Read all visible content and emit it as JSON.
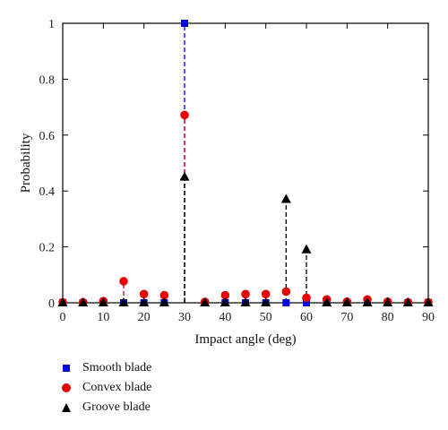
{
  "chart_data": {
    "type": "scatter",
    "xlabel": "Impact angle (deg)",
    "ylabel": "Probability",
    "xlim": [
      0,
      90
    ],
    "ylim": [
      0,
      1
    ],
    "xticks": [
      0,
      10,
      20,
      30,
      40,
      50,
      60,
      70,
      80,
      90
    ],
    "yticks": [
      0,
      0.2,
      0.4,
      0.6,
      0.8,
      1
    ],
    "ytick_labels": [
      "0",
      "0.2",
      "0.4",
      "0.6",
      "0.8",
      "1"
    ],
    "grid": false,
    "legend_position": "bottom-left",
    "series": [
      {
        "name": "Smooth blade",
        "marker": "square",
        "color": "#0000e0",
        "stems": [
          30
        ],
        "points": [
          [
            0,
            0
          ],
          [
            5,
            0
          ],
          [
            10,
            0
          ],
          [
            15,
            0
          ],
          [
            20,
            0
          ],
          [
            25,
            0
          ],
          [
            30,
            1
          ],
          [
            35,
            0
          ],
          [
            40,
            0
          ],
          [
            45,
            0
          ],
          [
            50,
            0
          ],
          [
            55,
            0
          ],
          [
            60,
            0
          ],
          [
            65,
            0
          ],
          [
            70,
            0
          ],
          [
            75,
            0
          ],
          [
            80,
            0
          ],
          [
            85,
            0
          ],
          [
            90,
            0
          ]
        ]
      },
      {
        "name": "Convex blade",
        "marker": "circle",
        "color": "#e80000",
        "stems": [
          15,
          30
        ],
        "points": [
          [
            0,
            0.002
          ],
          [
            5,
            0.002
          ],
          [
            10,
            0.006
          ],
          [
            15,
            0.077
          ],
          [
            20,
            0.031
          ],
          [
            25,
            0.027
          ],
          [
            30,
            0.672
          ],
          [
            35,
            0.003
          ],
          [
            40,
            0.027
          ],
          [
            45,
            0.031
          ],
          [
            50,
            0.031
          ],
          [
            55,
            0.04
          ],
          [
            60,
            0.018
          ],
          [
            65,
            0.012
          ],
          [
            70,
            0.004
          ],
          [
            75,
            0.012
          ],
          [
            80,
            0.004
          ],
          [
            85,
            0.002
          ],
          [
            90,
            0.002
          ]
        ]
      },
      {
        "name": "Groove blade",
        "marker": "triangle",
        "color": "#000000",
        "stems": [
          30,
          55,
          60
        ],
        "points": [
          [
            0,
            0
          ],
          [
            5,
            0
          ],
          [
            10,
            0
          ],
          [
            15,
            0
          ],
          [
            20,
            0
          ],
          [
            25,
            0
          ],
          [
            30,
            0.45
          ],
          [
            35,
            0
          ],
          [
            40,
            0
          ],
          [
            45,
            0
          ],
          [
            50,
            0
          ],
          [
            55,
            0.37
          ],
          [
            60,
            0.19
          ],
          [
            65,
            0
          ],
          [
            70,
            0
          ],
          [
            75,
            0
          ],
          [
            80,
            0
          ],
          [
            85,
            0
          ],
          [
            90,
            0
          ]
        ]
      }
    ]
  }
}
